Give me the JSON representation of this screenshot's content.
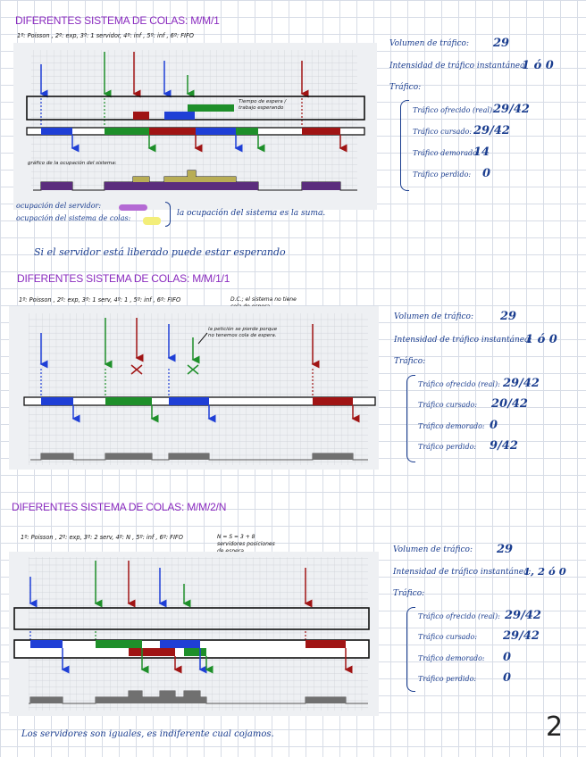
{
  "page_number": "2",
  "sections": [
    {
      "title": "DIFERENTES SISTEMA DE COLAS: M/M/1",
      "params": "1º: Poisson , 2º: exp, 3º: 1 servidor, 4º: inf , 5º: inf , 6º: FIFO",
      "wait_note": "Tiempo de espera / trabajo esperando",
      "occupancy_label": "gráfico de la ocupación del sistema:",
      "stats": {
        "traffic_volume_label": "Volumen de tráfico:",
        "traffic_volume": "29",
        "intensity_label": "Intensidad de tráfico instantánea:",
        "intensity": "1 ó 0",
        "traffic_label": "Tráfico:",
        "offered_label": "Tráfico ofrecido (real):",
        "offered": "29/42",
        "carried_label": "Tráfico cursado:",
        "carried": "29/42",
        "delayed_label": "Tráfico demorado:",
        "delayed": "14",
        "lost_label": "Tráfico perdido:",
        "lost": "0"
      },
      "legend_server": "ocupación del servidor:",
      "legend_queue": "ocupación del sistema de colas:",
      "legend_note": "la ocupación del sistema es la suma.",
      "footer": "Si el servidor está liberado puede estar esperando"
    },
    {
      "title": "DIFERENTES SISTEMA DE COLAS: M/M/1/1",
      "params": "1º: Poisson , 2º: exp, 3º: 1 serv, 4º: 1 , 5º: inf , 6º: FIFO",
      "params_note": "D.C.; el sistema no tiene cola de espera.",
      "loss_note": "la petición se pierde porque no tenemos cola de espera.",
      "stats": {
        "traffic_volume_label": "Volumen de tráfico:",
        "traffic_volume": "29",
        "intensity_label": "Intensidad de tráfico instantánea:",
        "intensity": "1 ó 0",
        "traffic_label": "Tráfico:",
        "offered_label": "Tráfico ofrecido (real):",
        "offered": "29/42",
        "carried_label": "Tráfico cursado:",
        "carried": "20/42",
        "delayed_label": "Tráfico demorado:",
        "delayed": "0",
        "lost_label": "Tráfico perdido:",
        "lost": "9/42"
      }
    },
    {
      "title": "DIFERENTES SISTEMA DE COLAS: M/M/2/N",
      "params": "1º: Poisson , 2º: exp, 3º: 2 serv, 4º: N , 5º: inf , 6º: FIFO",
      "params_note": "N = S = 3 + 8 servidores posiciones de espera",
      "stats": {
        "traffic_volume_label": "Volumen de tráfico:",
        "traffic_volume": "29",
        "intensity_label": "Intensidad de tráfico instantánea:",
        "intensity": "1, 2 ó 0",
        "traffic_label": "Tráfico:",
        "offered_label": "Tráfico ofrecido (real):",
        "offered": "29/42",
        "carried_label": "Tráfico cursado:",
        "carried": "29/42",
        "delayed_label": "Tráfico demorado:",
        "delayed": "0",
        "lost_label": "Tráfico perdido:",
        "lost": "0"
      },
      "footer": "Los servidores son iguales, es indiferente cual cojamos."
    }
  ],
  "colors": {
    "blue": "#1f3fd6",
    "green": "#1e8f2a",
    "red": "#a01414",
    "purple": "#5b2d7d",
    "olive": "#b8ad55",
    "gray": "#707070",
    "highlight_purple": "#b46ad4",
    "highlight_yellow": "#f3ee7a"
  }
}
